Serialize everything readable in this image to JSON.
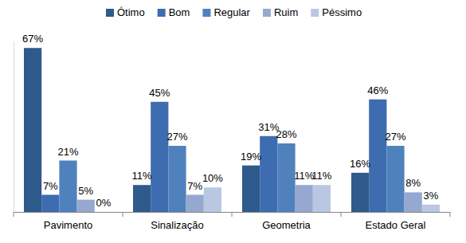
{
  "chart_data": {
    "type": "bar",
    "categories": [
      "Pavimento",
      "Sinalização",
      "Geometria",
      "Estado Geral"
    ],
    "series": [
      {
        "name": "Ótimo",
        "color": "#2E5A8C",
        "values": [
          67,
          11,
          19,
          16
        ],
        "value_labels": [
          "67%",
          "11%",
          "19%",
          "16%"
        ]
      },
      {
        "name": "Bom",
        "color": "#3D6CB0",
        "values": [
          7,
          45,
          31,
          46
        ],
        "value_labels": [
          "7%",
          "45%",
          "31%",
          "46%"
        ]
      },
      {
        "name": "Regular",
        "color": "#4F81BD",
        "values": [
          21,
          27,
          28,
          27
        ],
        "value_labels": [
          "21%",
          "27%",
          "28%",
          "27%"
        ]
      },
      {
        "name": "Ruim",
        "color": "#95A8CF",
        "values": [
          5,
          7,
          11,
          8
        ],
        "value_labels": [
          "5%",
          "7%",
          "11%",
          "8%"
        ]
      },
      {
        "name": "Péssimo",
        "color": "#B9C7E3",
        "values": [
          0,
          10,
          11,
          3
        ],
        "value_labels": [
          "0%",
          "10%",
          "11%",
          "3%"
        ]
      }
    ],
    "ylim": [
      0,
      70
    ],
    "legend": "top",
    "data_labels": true,
    "tick_labels": "x",
    "grid": false
  }
}
